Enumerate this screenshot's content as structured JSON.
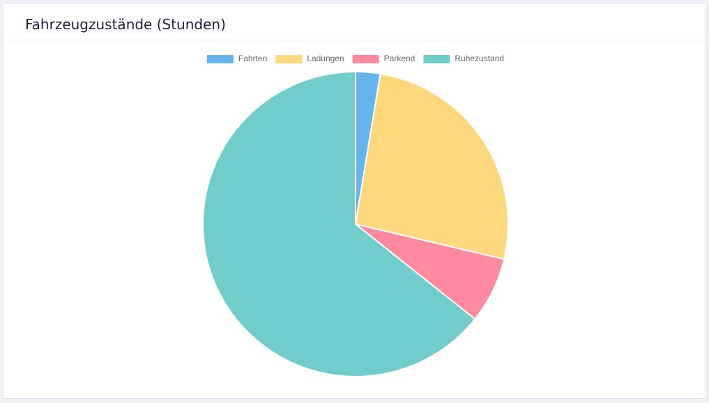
{
  "chart_data": {
    "type": "pie",
    "title": "Fahrzeugzustände (Stunden)",
    "categories": [
      "Fahrten",
      "Ladungen",
      "Parkend",
      "Ruhezustand"
    ],
    "values": [
      2.6,
      26.1,
      7.0,
      64.3
    ],
    "colors": [
      "#63b5ec",
      "#ffd77c",
      "#ff8aa0",
      "#71cdcc"
    ],
    "legend": "top"
  }
}
